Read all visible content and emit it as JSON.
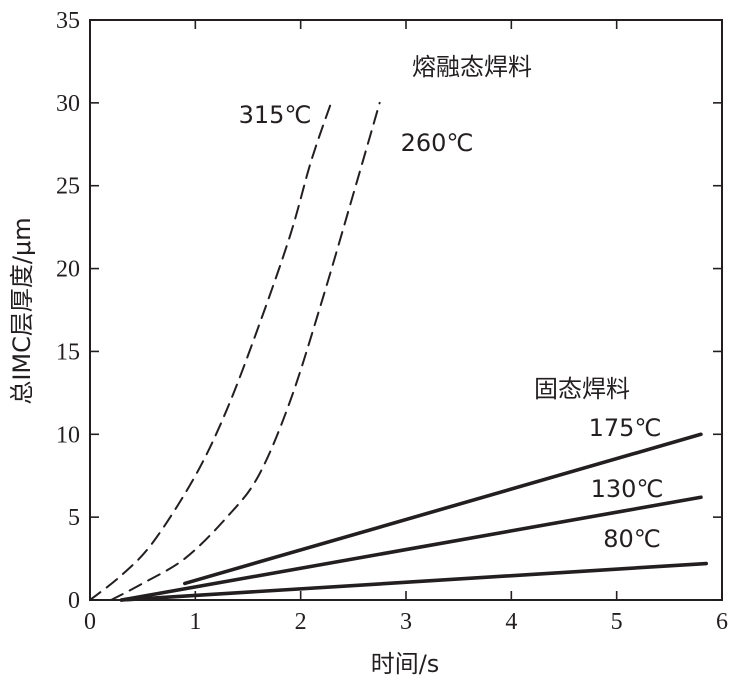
{
  "chart_data": {
    "type": "line",
    "xlabel": "时间/s",
    "ylabel": "总IMC层厚度/μm",
    "xlim": [
      0,
      6
    ],
    "ylim": [
      0,
      35
    ],
    "xticks": [
      "0",
      "1",
      "2",
      "3",
      "4",
      "5",
      "6"
    ],
    "yticks": [
      "0",
      "5",
      "10",
      "15",
      "20",
      "25",
      "30",
      "35"
    ],
    "grid": false,
    "groups": [
      {
        "label": "熔融态焊料",
        "style": "dashed"
      },
      {
        "label": "固态焊料",
        "style": "solid"
      }
    ],
    "series": [
      {
        "name": "315℃",
        "group": "熔融态焊料",
        "style": "dashed",
        "x": [
          0,
          0.3,
          0.6,
          1.0,
          1.3,
          1.6,
          1.9,
          2.1,
          2.3
        ],
        "y": [
          0,
          1.5,
          3.5,
          7.5,
          11.5,
          16.5,
          22.0,
          26.5,
          30.2
        ]
      },
      {
        "name": "260℃",
        "group": "熔融态焊料",
        "style": "dashed",
        "x": [
          0.2,
          0.5,
          0.9,
          1.3,
          1.6,
          1.9,
          2.2,
          2.5,
          2.75
        ],
        "y": [
          0,
          1.0,
          2.5,
          5.0,
          7.5,
          12.0,
          18.0,
          24.5,
          30.0
        ]
      },
      {
        "name": "175℃",
        "group": "固态焊料",
        "style": "solid",
        "x": [
          0.9,
          5.8
        ],
        "y": [
          1.0,
          10.0
        ]
      },
      {
        "name": "130℃",
        "group": "固态焊料",
        "style": "solid",
        "x": [
          0.3,
          5.8
        ],
        "y": [
          0.0,
          6.2
        ]
      },
      {
        "name": "80℃",
        "group": "固态焊料",
        "style": "solid",
        "x": [
          0.3,
          5.85
        ],
        "y": [
          0.0,
          2.2
        ]
      }
    ]
  }
}
